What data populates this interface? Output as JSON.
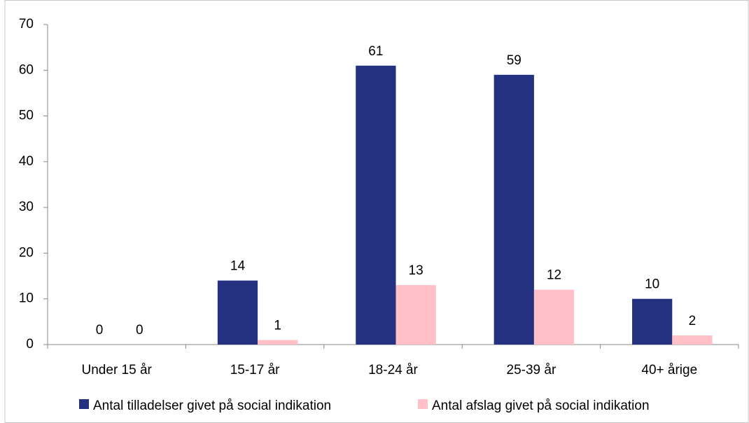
{
  "chart_data": {
    "type": "bar",
    "categories": [
      "Under 15 år",
      "15-17 år",
      "18-24 år",
      "25-39 år",
      "40+ årige"
    ],
    "series": [
      {
        "name": "Antal tilladelser givet på social indikation",
        "color": "#233180",
        "values": [
          0,
          14,
          61,
          59,
          10
        ]
      },
      {
        "name": "Antal afslag givet på social indikation",
        "color": "#ffc0c8",
        "values": [
          0,
          1,
          13,
          12,
          2
        ]
      }
    ],
    "ylim": [
      0,
      70
    ],
    "yticks": [
      0,
      10,
      20,
      30,
      40,
      50,
      60,
      70
    ],
    "legend": "bottom"
  }
}
